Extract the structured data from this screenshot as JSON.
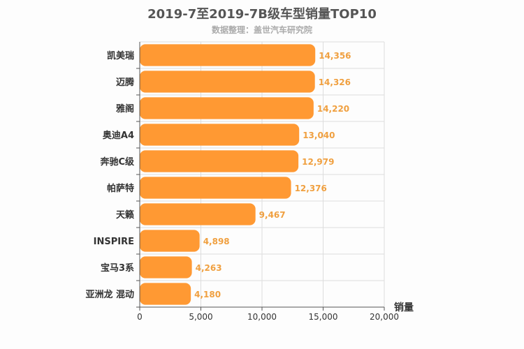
{
  "chart_data": {
    "type": "bar",
    "orientation": "horizontal",
    "title": "2019-7至2019-7B级车型销量TOP10",
    "subtitle": "数据整理：盖世汽车研究院",
    "xlabel": "销量",
    "ylabel": "",
    "xlim": [
      0,
      20000
    ],
    "xticks": [
      "0",
      "5,000",
      "10,000",
      "15,000",
      "20,000"
    ],
    "grid": true,
    "categories": [
      "凯美瑞",
      "迈腾",
      "雅阁",
      "奥迪A4",
      "奔驰C级",
      "帕萨特",
      "天籁",
      "INSPIRE",
      "宝马3系",
      "亚洲龙 混动"
    ],
    "values": [
      14356,
      14326,
      14220,
      13040,
      12979,
      12376,
      9467,
      4898,
      4263,
      4180
    ],
    "value_labels": [
      "14,356",
      "14,326",
      "14,220",
      "13,040",
      "12,979",
      "12,376",
      "9,467",
      "4,898",
      "4,263",
      "4,180"
    ],
    "bar_color": "#ff9933",
    "value_label_color": "#f0a040"
  }
}
